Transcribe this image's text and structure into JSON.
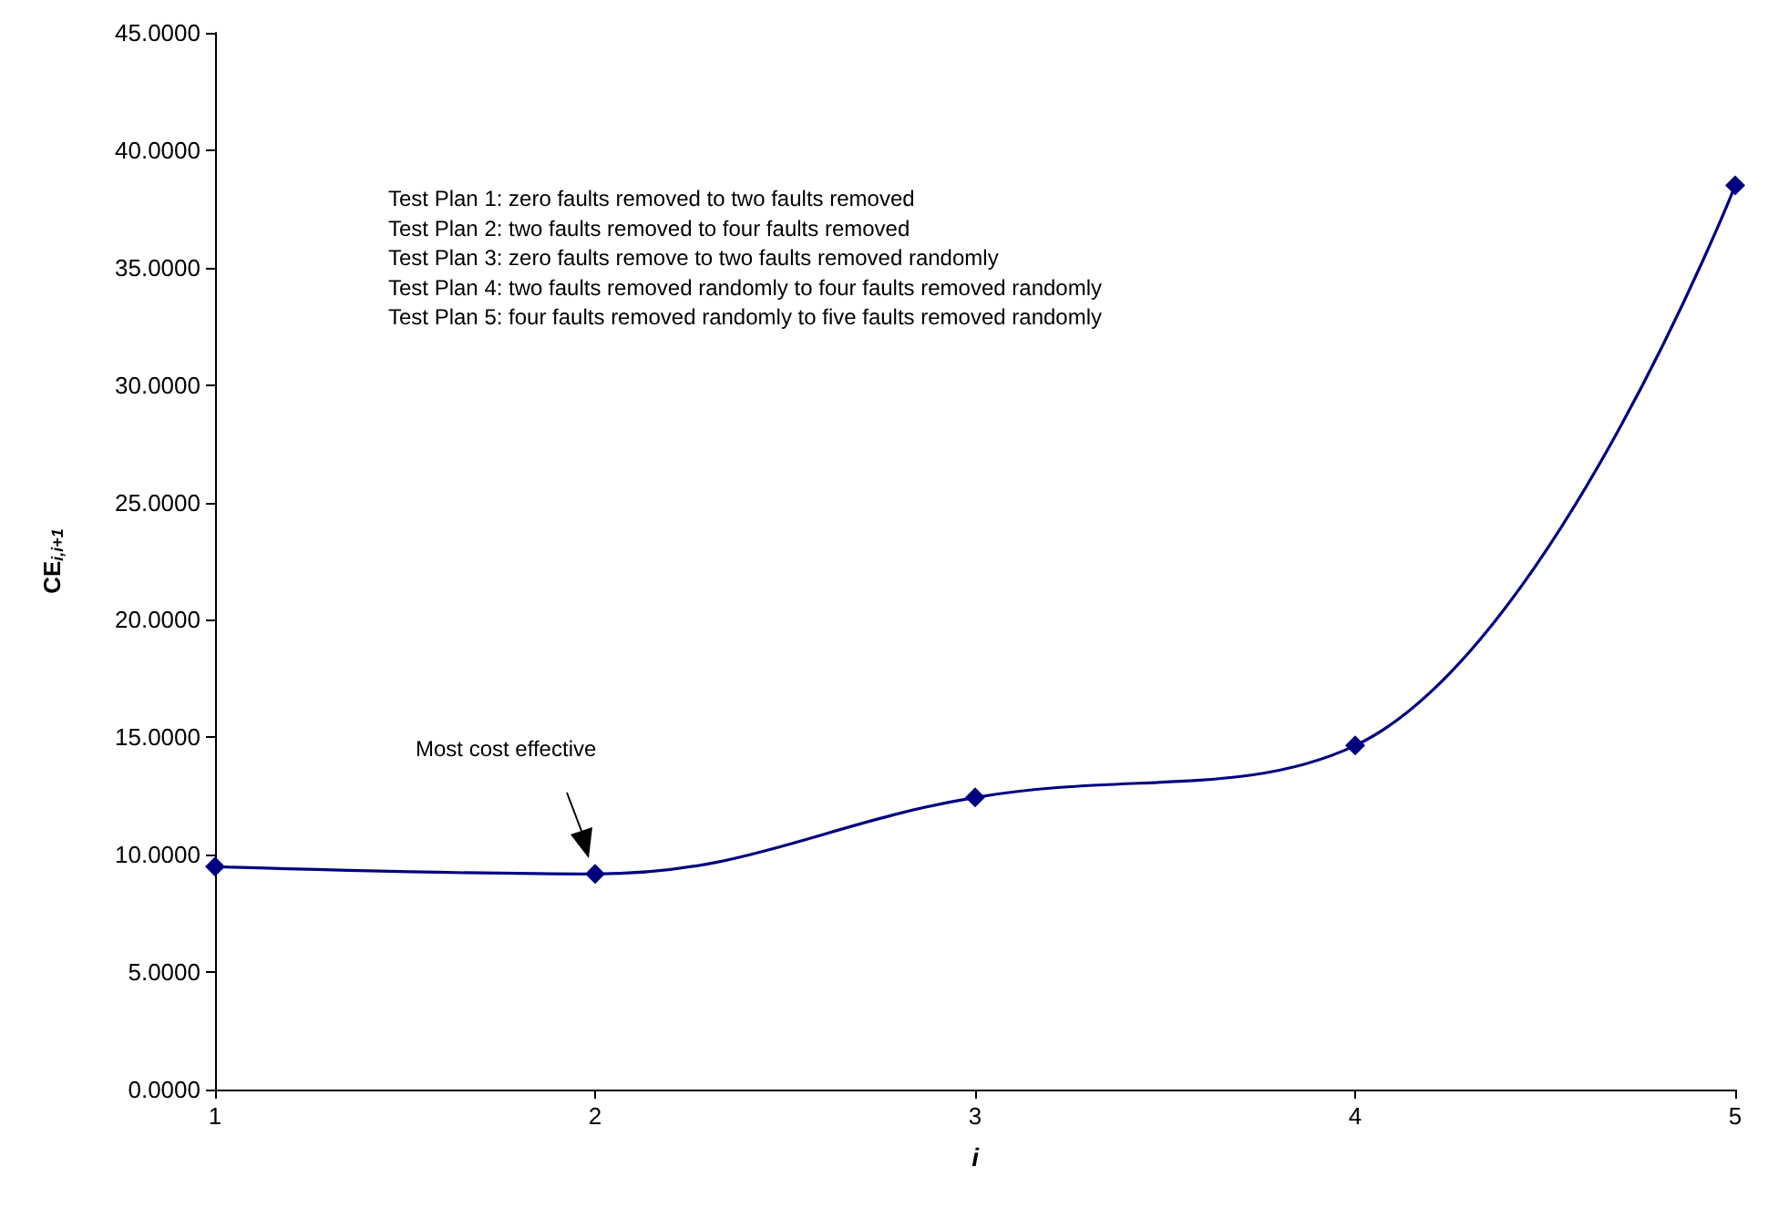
{
  "chart_data": {
    "type": "line",
    "xlabel": "i",
    "ylabel": "CE$_{i,i+1}$",
    "categories": [
      "1",
      "2",
      "3",
      "4",
      "5"
    ],
    "series": [
      {
        "color": "#000080",
        "values": [
          9.49,
          9.18,
          12.44,
          14.65,
          38.5
        ]
      }
    ],
    "ylim": [
      0,
      45
    ],
    "yticks": [
      {
        "value": 0,
        "label": "0.0000"
      },
      {
        "value": 5,
        "label": "5.0000"
      },
      {
        "value": 10,
        "label": "10.0000"
      },
      {
        "value": 15,
        "label": "15.0000"
      },
      {
        "value": 20,
        "label": "20.0000"
      },
      {
        "value": 25,
        "label": "25.0000"
      },
      {
        "value": 30,
        "label": "30.0000"
      },
      {
        "value": 35,
        "label": "35.0000"
      },
      {
        "value": 40,
        "label": "40.0000"
      },
      {
        "value": 45,
        "label": "45.0000"
      }
    ],
    "marker": "diamond",
    "line_style": "solid",
    "annotations": [
      "Most cost effective",
      "Test Plan 1: zero faults removed to two faults removed",
      "Test Plan 2: two faults removed to four faults removed",
      "Test Plan 3: zero faults remove to two faults removed randomly",
      "Test Plan 4: two faults removed randomly to four faults removed randomly",
      "Test Plan 5: four faults removed randomly to five faults removed randomly"
    ]
  }
}
